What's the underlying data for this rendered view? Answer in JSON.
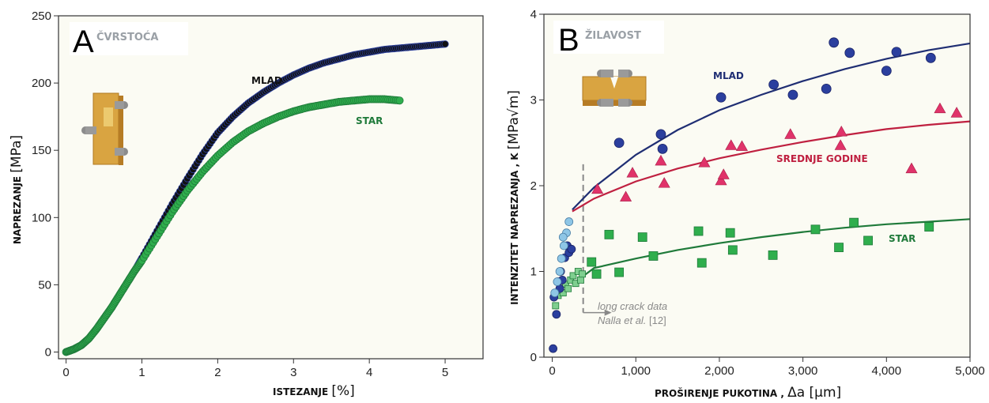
{
  "colors": {
    "panel_bg": "#fbfbf3",
    "mlad": "#1f2e73",
    "mlad_point": "#2b3f9e",
    "mlad_point_light": "#8ec6e6",
    "srednje": "#bf2040",
    "srednje_point": "#e0336a",
    "star": "#1f7a3a",
    "star_point": "#2fae4d",
    "black_trace": "#111111"
  },
  "chart_data": [
    {
      "type": "scatter",
      "panel_letter": "A",
      "title": "ČVRSTOĆA",
      "xlabel": "ISTEZANJE",
      "xunit": "[%]",
      "ylabel": "NAPREZANJE",
      "yunit": "[MPa]",
      "xlim": [
        -0.1,
        5.5
      ],
      "ylim": [
        -5,
        250
      ],
      "xticks": [
        0,
        1,
        2,
        3,
        4,
        5
      ],
      "yticks": [
        0,
        50,
        100,
        150,
        200,
        250
      ],
      "series": [
        {
          "name": "MLAD",
          "x": [
            0,
            0.1,
            0.2,
            0.3,
            0.4,
            0.5,
            0.6,
            0.7,
            0.8,
            0.9,
            1.0,
            1.2,
            1.4,
            1.6,
            1.8,
            2.0,
            2.2,
            2.4,
            2.6,
            2.8,
            3.0,
            3.2,
            3.4,
            3.6,
            3.8,
            4.0,
            4.2,
            4.4,
            4.6,
            4.8,
            5.0
          ],
          "y": [
            0,
            2,
            5,
            10,
            17,
            25,
            33,
            42,
            51,
            60,
            70,
            90,
            110,
            129,
            147,
            163,
            175,
            185,
            193,
            200,
            206,
            211,
            215,
            218,
            221,
            223,
            225,
            226,
            227,
            228,
            229
          ]
        },
        {
          "name": "STAR",
          "x": [
            0,
            0.1,
            0.2,
            0.3,
            0.4,
            0.5,
            0.6,
            0.7,
            0.8,
            0.9,
            1.0,
            1.2,
            1.4,
            1.6,
            1.8,
            2.0,
            2.2,
            2.4,
            2.6,
            2.8,
            3.0,
            3.2,
            3.4,
            3.6,
            3.8,
            4.0,
            4.2,
            4.4
          ],
          "y": [
            0,
            2,
            5,
            10,
            17,
            25,
            33,
            42,
            51,
            60,
            68,
            86,
            104,
            120,
            134,
            146,
            156,
            164,
            170,
            175,
            179,
            182,
            184,
            186,
            187,
            188,
            188,
            187
          ]
        }
      ],
      "annotations": [
        "MLAD",
        "STAR"
      ]
    },
    {
      "type": "scatter",
      "panel_letter": "B",
      "title": "ŽILAVOST",
      "xlabel": "PROŠIRENJE PUKOTINA ,",
      "xunit": "Δa [µm]",
      "ylabel": "INTENZITET NAPREZANJA , K",
      "yunit": "[MPa√m]",
      "xlim": [
        -100,
        5000
      ],
      "ylim": [
        0,
        4
      ],
      "xticks": [
        0,
        1000,
        2000,
        3000,
        4000,
        5000
      ],
      "xtick_labels": [
        "0",
        "1,000",
        "2,000",
        "3,000",
        "4,000",
        "5,000"
      ],
      "yticks": [
        0,
        1,
        2,
        3,
        4
      ],
      "series": [
        {
          "name": "MLAD",
          "points": [
            [
              800,
              2.5
            ],
            [
              1300,
              2.6
            ],
            [
              1320,
              2.43
            ],
            [
              2020,
              3.03
            ],
            [
              2650,
              3.18
            ],
            [
              2880,
              3.06
            ],
            [
              3280,
              3.13
            ],
            [
              3370,
              3.67
            ],
            [
              3560,
              3.55
            ],
            [
              4000,
              3.34
            ],
            [
              4120,
              3.56
            ],
            [
              4530,
              3.49
            ]
          ],
          "fit": [
            [
              240,
              1.72
            ],
            [
              500,
              1.98
            ],
            [
              1000,
              2.36
            ],
            [
              1500,
              2.65
            ],
            [
              2000,
              2.88
            ],
            [
              2500,
              3.06
            ],
            [
              3000,
              3.22
            ],
            [
              3500,
              3.36
            ],
            [
              4000,
              3.48
            ],
            [
              4500,
              3.58
            ],
            [
              5000,
              3.66
            ]
          ]
        },
        {
          "name": "SREDNJE GODINE",
          "points": [
            [
              540,
              1.96
            ],
            [
              880,
              1.87
            ],
            [
              960,
              2.15
            ],
            [
              1300,
              2.29
            ],
            [
              1340,
              2.03
            ],
            [
              1820,
              2.27
            ],
            [
              2020,
              2.06
            ],
            [
              2050,
              2.13
            ],
            [
              2140,
              2.47
            ],
            [
              2270,
              2.46
            ],
            [
              2850,
              2.6
            ],
            [
              3450,
              2.47
            ],
            [
              3460,
              2.63
            ],
            [
              4300,
              2.2
            ],
            [
              4640,
              2.9
            ],
            [
              4840,
              2.85
            ]
          ],
          "fit": [
            [
              240,
              1.7
            ],
            [
              500,
              1.85
            ],
            [
              1000,
              2.05
            ],
            [
              1500,
              2.2
            ],
            [
              2000,
              2.32
            ],
            [
              2500,
              2.42
            ],
            [
              3000,
              2.51
            ],
            [
              3500,
              2.59
            ],
            [
              4000,
              2.66
            ],
            [
              4500,
              2.71
            ],
            [
              5000,
              2.75
            ]
          ]
        },
        {
          "name": "STAR",
          "points": [
            [
              470,
              1.11
            ],
            [
              530,
              0.97
            ],
            [
              680,
              1.43
            ],
            [
              800,
              0.99
            ],
            [
              1080,
              1.4
            ],
            [
              1210,
              1.18
            ],
            [
              1750,
              1.47
            ],
            [
              1790,
              1.1
            ],
            [
              2130,
              1.45
            ],
            [
              2160,
              1.25
            ],
            [
              2640,
              1.19
            ],
            [
              3150,
              1.49
            ],
            [
              3430,
              1.28
            ],
            [
              3610,
              1.57
            ],
            [
              3780,
              1.36
            ],
            [
              4510,
              1.52
            ]
          ],
          "fit": [
            [
              240,
              0.85
            ],
            [
              500,
              1.04
            ],
            [
              1000,
              1.15
            ],
            [
              1500,
              1.25
            ],
            [
              2000,
              1.33
            ],
            [
              2500,
              1.4
            ],
            [
              3000,
              1.46
            ],
            [
              3500,
              1.51
            ],
            [
              4000,
              1.55
            ],
            [
              4500,
              1.58
            ],
            [
              5000,
              1.61
            ]
          ]
        },
        {
          "name": "MLAD short",
          "points": [
            [
              10,
              0.1
            ],
            [
              20,
              0.7
            ],
            [
              50,
              0.5
            ],
            [
              70,
              0.88
            ],
            [
              100,
              1.0
            ],
            [
              120,
              0.9
            ],
            [
              150,
              1.16
            ],
            [
              180,
              1.3
            ],
            [
              200,
              1.22
            ],
            [
              230,
              1.26
            ],
            [
              90,
              0.8
            ]
          ]
        },
        {
          "name": "MLAD short light",
          "points": [
            [
              30,
              0.75
            ],
            [
              60,
              0.88
            ],
            [
              90,
              1.0
            ],
            [
              110,
              1.15
            ],
            [
              140,
              1.3
            ],
            [
              170,
              1.45
            ],
            [
              200,
              1.58
            ],
            [
              130,
              1.4
            ]
          ]
        },
        {
          "name": "STAR short",
          "points": [
            [
              40,
              0.6
            ],
            [
              70,
              0.72
            ],
            [
              100,
              0.78
            ],
            [
              130,
              0.75
            ],
            [
              160,
              0.85
            ],
            [
              190,
              0.8
            ],
            [
              220,
              0.9
            ],
            [
              250,
              0.95
            ],
            [
              280,
              0.86
            ],
            [
              310,
              1.0
            ],
            [
              340,
              0.9
            ],
            [
              360,
              0.97
            ]
          ]
        }
      ],
      "annotations": [
        "MLAD",
        "SREDNJE GODINE",
        "STAR"
      ],
      "note": {
        "line1": "long crack data",
        "line2": "Nalla et al.",
        "ref": "[12]"
      }
    }
  ]
}
